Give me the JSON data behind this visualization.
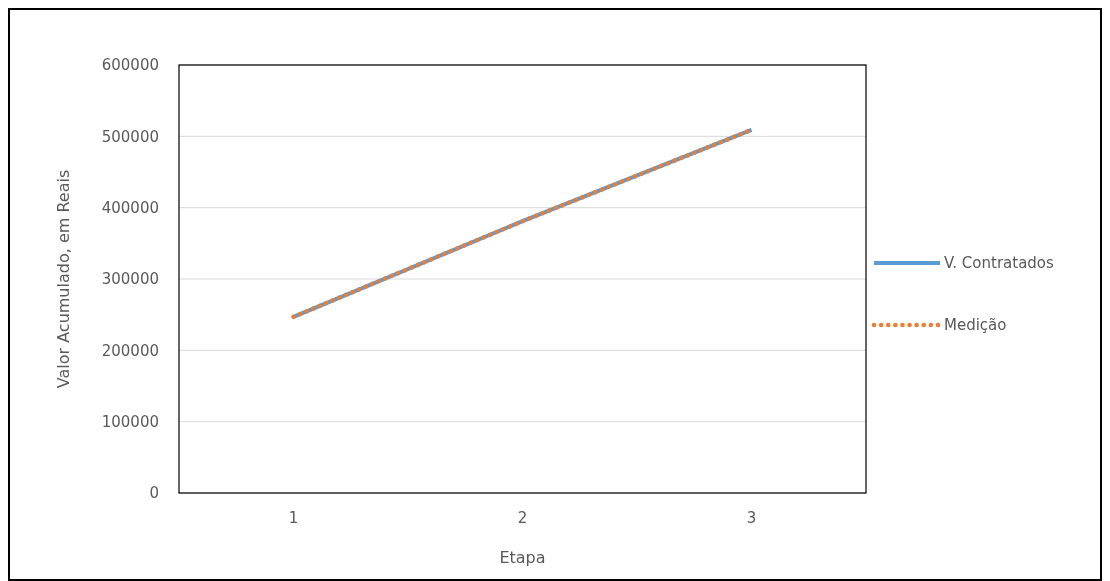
{
  "chart_data": {
    "type": "line",
    "xlabel": "Etapa",
    "ylabel": "Valor Acumulado, em Reais",
    "categories": [
      "1",
      "2",
      "3"
    ],
    "series": [
      {
        "name": "V. Contratados",
        "color": "#5b9bd5",
        "values": [
          247000,
          381000,
          509000
        ],
        "line_style": "solid"
      },
      {
        "name": "Medição",
        "color": "#ed7d31",
        "values": [
          247000,
          381000,
          509000
        ],
        "line_style": "dotted"
      }
    ],
    "ylim": [
      0,
      600000
    ],
    "yticks": [
      0,
      100000,
      200000,
      300000,
      400000,
      500000,
      600000
    ],
    "grid": "y",
    "legend": "right",
    "marker": "none"
  }
}
